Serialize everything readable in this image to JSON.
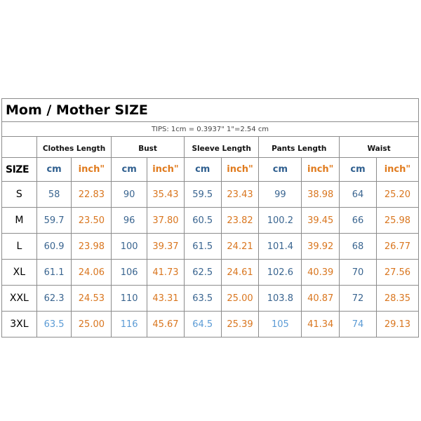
{
  "title": "Mom / Mother  SIZE",
  "tips": "TIPS: 1cm = 0.3937\"    1\"=2.54 cm",
  "size_header": "SIZE",
  "groups": [
    "Clothes Length",
    "Bust",
    "Sleeve Length",
    "Pants Length",
    "Waist"
  ],
  "units": {
    "cm": "cm",
    "inch": "inch\""
  },
  "colors": {
    "cm": "#3a6590",
    "inch": "#d9761f",
    "border": "#8c8c8c"
  },
  "rows": [
    {
      "size": "S",
      "values": [
        "58",
        "22.83",
        "90",
        "35.43",
        "59.5",
        "23.43",
        "99",
        "38.98",
        "64",
        "25.20"
      ]
    },
    {
      "size": "M",
      "values": [
        "59.7",
        "23.50",
        "96",
        "37.80",
        "60.5",
        "23.82",
        "100.2",
        "39.45",
        "66",
        "25.98"
      ]
    },
    {
      "size": "L",
      "values": [
        "60.9",
        "23.98",
        "100",
        "39.37",
        "61.5",
        "24.21",
        "101.4",
        "39.92",
        "68",
        "26.77"
      ]
    },
    {
      "size": "XL",
      "values": [
        "61.1",
        "24.06",
        "106",
        "41.73",
        "62.5",
        "24.61",
        "102.6",
        "40.39",
        "70",
        "27.56"
      ]
    },
    {
      "size": "XXL",
      "values": [
        "62.3",
        "24.53",
        "110",
        "43.31",
        "63.5",
        "25.00",
        "103.8",
        "40.87",
        "72",
        "28.35"
      ]
    },
    {
      "size": "3XL",
      "values": [
        "63.5",
        "25.00",
        "116",
        "45.67",
        "64.5",
        "25.39",
        "105",
        "41.34",
        "74",
        "29.13"
      ]
    }
  ]
}
